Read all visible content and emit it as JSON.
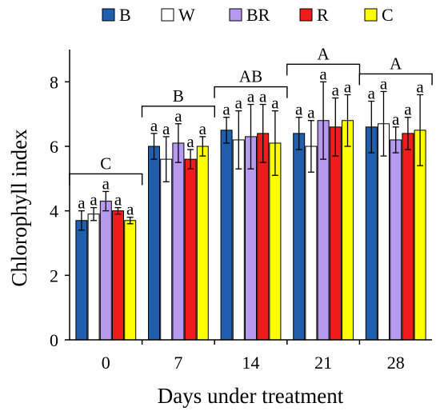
{
  "chart_data": {
    "type": "bar",
    "xlabel": "Days under treatment",
    "ylabel": "Chlorophyll index",
    "ylim": [
      0,
      9
    ],
    "yticks": [
      0,
      2,
      4,
      6,
      8
    ],
    "grid": false,
    "legend_position": "top",
    "categories": [
      "0",
      "7",
      "14",
      "21",
      "28"
    ],
    "series": [
      {
        "name": "B",
        "color": "#1f5fae",
        "values": [
          3.7,
          6.0,
          6.5,
          6.4,
          6.6
        ],
        "errors": [
          0.3,
          0.4,
          0.4,
          0.5,
          0.8
        ]
      },
      {
        "name": "W",
        "color": "#ffffff",
        "values": [
          3.9,
          5.6,
          6.2,
          6.0,
          6.7
        ],
        "errors": [
          0.2,
          0.7,
          0.9,
          0.8,
          1.0
        ]
      },
      {
        "name": "BR",
        "color": "#b79af0",
        "values": [
          4.3,
          6.1,
          6.3,
          6.8,
          6.2
        ],
        "errors": [
          0.3,
          0.6,
          1.0,
          1.2,
          0.4
        ]
      },
      {
        "name": "R",
        "color": "#ee1c1c",
        "values": [
          4.0,
          5.6,
          6.4,
          6.6,
          6.4
        ],
        "errors": [
          0.1,
          0.3,
          0.9,
          0.9,
          0.5
        ]
      },
      {
        "name": "C",
        "color": "#ffff00",
        "values": [
          3.7,
          6.0,
          6.1,
          6.8,
          6.5
        ],
        "errors": [
          0.1,
          0.3,
          1.0,
          0.8,
          1.1
        ]
      }
    ],
    "bar_letters": [
      [
        "a",
        "a",
        "a",
        "a",
        "a"
      ],
      [
        "a",
        "a",
        "a",
        "a",
        "a"
      ],
      [
        "a",
        "a",
        "a",
        "a",
        "a"
      ],
      [
        "a",
        "a",
        "a",
        "a",
        "a"
      ],
      [
        "a",
        "a",
        "a",
        "a",
        "a"
      ]
    ],
    "group_letters": [
      "C",
      "B",
      "AB",
      "A",
      "A"
    ]
  }
}
